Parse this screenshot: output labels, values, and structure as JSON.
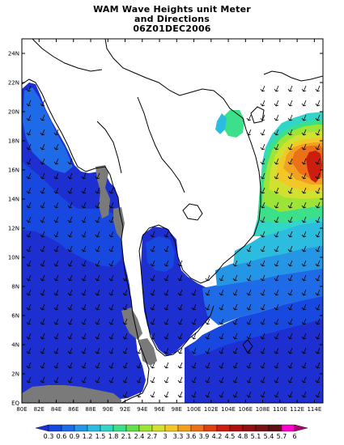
{
  "title": {
    "line1": "WAM Wave Heights unit Meter",
    "line2": "and Directions",
    "line3": "06Z01DEC2006"
  },
  "axes": {
    "lon_range": [
      80,
      115
    ],
    "lat_range": [
      0,
      25
    ],
    "lon_ticks": [
      "80E",
      "82E",
      "84E",
      "86E",
      "88E",
      "90E",
      "92E",
      "94E",
      "96E",
      "98E",
      "100E",
      "102E",
      "104E",
      "106E",
      "108E",
      "110E",
      "112E",
      "114E"
    ],
    "lat_ticks": [
      "EQ",
      "2N",
      "4N",
      "6N",
      "8N",
      "10N",
      "12N",
      "14N",
      "16N",
      "18N",
      "20N",
      "22N",
      "24N"
    ]
  },
  "colorbar": {
    "labels": [
      "0.3",
      "0.6",
      "0.9",
      "1.2",
      "1.5",
      "1.8",
      "2.1",
      "2.4",
      "2.7",
      "3",
      "3.3",
      "3.6",
      "3.9",
      "4.2",
      "4.5",
      "4.8",
      "5.1",
      "5.4",
      "5.7",
      "6"
    ],
    "colors": [
      "#1d2fd0",
      "#1749e0",
      "#1f6ae6",
      "#2596e6",
      "#2bbce0",
      "#31d6c8",
      "#3ce08a",
      "#64e04a",
      "#9ee437",
      "#d2e030",
      "#f2c828",
      "#f2a020",
      "#ec7018",
      "#e04010",
      "#cc1e0e",
      "#b0100c",
      "#901010",
      "#761212",
      "#5c1216",
      "#ff00cc",
      "#b0006e"
    ],
    "scale_min": 0.3,
    "scale_max": 6
  },
  "colors": {
    "land": "#ffffff",
    "masked": "#7a7a7a",
    "coast": "#000000"
  }
}
